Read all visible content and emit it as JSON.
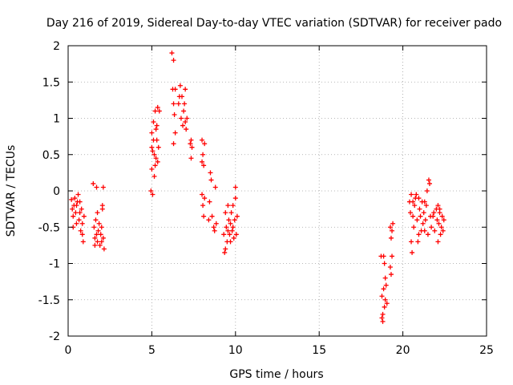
{
  "chart_data": {
    "type": "scatter",
    "title": "Day 216 of 2019, Sidereal Day-to-day VTEC variation (SDTVAR) for receiver pado",
    "xlabel": "GPS time / hours",
    "ylabel": "SDTVAR / TECUs",
    "xlim": [
      0,
      25
    ],
    "ylim": [
      -2,
      2
    ],
    "xticks": [
      0,
      5,
      10,
      15,
      20,
      25
    ],
    "yticks": [
      -2,
      -1.5,
      -1,
      -0.5,
      0,
      0.5,
      1,
      1.5,
      2
    ],
    "grid": true,
    "marker": "+",
    "color": "#ff0000",
    "series": [
      {
        "name": "SDTVAR",
        "points": [
          [
            0.2,
            -0.12
          ],
          [
            0.25,
            -0.25
          ],
          [
            0.3,
            -0.35
          ],
          [
            0.35,
            -0.2
          ],
          [
            0.4,
            -0.1
          ],
          [
            0.45,
            -0.3
          ],
          [
            0.5,
            -0.45
          ],
          [
            0.55,
            -0.15
          ],
          [
            0.6,
            -0.05
          ],
          [
            0.65,
            -0.4
          ],
          [
            0.7,
            -0.3
          ],
          [
            0.75,
            -0.55
          ],
          [
            0.8,
            -0.25
          ],
          [
            0.85,
            -0.6
          ],
          [
            0.9,
            -0.7
          ],
          [
            0.95,
            -0.35
          ],
          [
            0.3,
            -0.5
          ],
          [
            0.5,
            -0.2
          ],
          [
            0.7,
            -0.15
          ],
          [
            0.85,
            -0.45
          ],
          [
            1.5,
            0.1
          ],
          [
            1.55,
            -0.5
          ],
          [
            1.6,
            -0.65
          ],
          [
            1.65,
            -0.4
          ],
          [
            1.7,
            0.05
          ],
          [
            1.75,
            -0.7
          ],
          [
            1.8,
            -0.55
          ],
          [
            1.85,
            -0.45
          ],
          [
            1.9,
            -0.75
          ],
          [
            1.95,
            -0.6
          ],
          [
            2.0,
            -0.7
          ],
          [
            2.05,
            -0.2
          ],
          [
            2.1,
            0.05
          ],
          [
            2.15,
            -0.8
          ],
          [
            2.1,
            -0.65
          ],
          [
            1.6,
            -0.75
          ],
          [
            1.75,
            -0.3
          ],
          [
            2.0,
            -0.5
          ],
          [
            2.05,
            -0.25
          ],
          [
            1.7,
            -0.6
          ],
          [
            4.95,
            0.0
          ],
          [
            5.0,
            0.3
          ],
          [
            5.05,
            0.55
          ],
          [
            5.0,
            0.8
          ],
          [
            5.1,
            0.95
          ],
          [
            5.15,
            0.2
          ],
          [
            5.2,
            1.1
          ],
          [
            5.25,
            0.45
          ],
          [
            5.3,
            0.7
          ],
          [
            5.35,
            1.15
          ],
          [
            5.1,
            0.7
          ],
          [
            5.2,
            0.35
          ],
          [
            5.3,
            0.9
          ],
          [
            5.4,
            0.6
          ],
          [
            5.45,
            1.1
          ],
          [
            5.05,
            -0.05
          ],
          [
            5.15,
            0.5
          ],
          [
            5.25,
            0.85
          ],
          [
            5.35,
            0.4
          ],
          [
            5.0,
            0.6
          ],
          [
            6.2,
            1.9
          ],
          [
            6.3,
            1.8
          ],
          [
            6.25,
            1.4
          ],
          [
            6.35,
            1.05
          ],
          [
            6.4,
            0.8
          ],
          [
            6.3,
            0.65
          ],
          [
            6.6,
            1.2
          ],
          [
            6.7,
            1.45
          ],
          [
            6.75,
            1.0
          ],
          [
            6.8,
            1.3
          ],
          [
            6.85,
            0.9
          ],
          [
            6.9,
            1.1
          ],
          [
            7.0,
            1.4
          ],
          [
            7.05,
            0.85
          ],
          [
            7.1,
            1.0
          ],
          [
            6.65,
            1.3
          ],
          [
            6.95,
            1.2
          ],
          [
            7.0,
            0.95
          ],
          [
            6.4,
            1.4
          ],
          [
            6.3,
            1.2
          ],
          [
            7.3,
            0.65
          ],
          [
            7.35,
            0.45
          ],
          [
            7.4,
            0.6
          ],
          [
            7.35,
            0.7
          ],
          [
            8.0,
            0.7
          ],
          [
            8.05,
            0.5
          ],
          [
            8.1,
            0.35
          ],
          [
            8.0,
            0.4
          ],
          [
            8.15,
            0.65
          ],
          [
            8.0,
            -0.05
          ],
          [
            8.05,
            -0.2
          ],
          [
            8.1,
            -0.35
          ],
          [
            8.15,
            -0.1
          ],
          [
            8.4,
            -0.4
          ],
          [
            8.45,
            -0.15
          ],
          [
            8.5,
            0.25
          ],
          [
            8.55,
            0.15
          ],
          [
            8.6,
            -0.35
          ],
          [
            8.7,
            -0.5
          ],
          [
            8.8,
            0.05
          ],
          [
            8.75,
            -0.55
          ],
          [
            8.85,
            -0.45
          ],
          [
            9.3,
            -0.6
          ],
          [
            9.35,
            -0.85
          ],
          [
            9.4,
            -0.3
          ],
          [
            9.45,
            -0.5
          ],
          [
            9.5,
            -0.7
          ],
          [
            9.55,
            -0.2
          ],
          [
            9.6,
            -0.4
          ],
          [
            9.65,
            -0.6
          ],
          [
            9.7,
            -0.45
          ],
          [
            9.75,
            -0.3
          ],
          [
            9.8,
            -0.55
          ],
          [
            9.85,
            -0.2
          ],
          [
            9.9,
            -0.65
          ],
          [
            9.95,
            -0.4
          ],
          [
            10.0,
            0.05
          ],
          [
            10.05,
            -0.6
          ],
          [
            10.1,
            -0.35
          ],
          [
            10.0,
            -0.1
          ],
          [
            9.4,
            -0.8
          ],
          [
            9.55,
            -0.55
          ],
          [
            9.7,
            -0.7
          ],
          [
            9.85,
            -0.5
          ],
          [
            18.7,
            -0.9
          ],
          [
            18.75,
            -1.45
          ],
          [
            18.8,
            -1.8
          ],
          [
            18.85,
            -1.35
          ],
          [
            18.9,
            -1.6
          ],
          [
            18.95,
            -1.2
          ],
          [
            18.85,
            -0.9
          ],
          [
            18.9,
            -1.0
          ],
          [
            18.8,
            -1.7
          ],
          [
            18.95,
            -1.5
          ],
          [
            19.0,
            -1.3
          ],
          [
            19.05,
            -1.55
          ],
          [
            18.75,
            -1.75
          ],
          [
            19.25,
            -0.5
          ],
          [
            19.3,
            -0.65
          ],
          [
            19.35,
            -0.55
          ],
          [
            19.25,
            -1.05
          ],
          [
            19.3,
            -1.15
          ],
          [
            19.35,
            -0.9
          ],
          [
            19.4,
            -0.45
          ],
          [
            20.4,
            -0.15
          ],
          [
            20.45,
            -0.3
          ],
          [
            20.5,
            -0.7
          ],
          [
            20.55,
            -0.85
          ],
          [
            20.5,
            -0.05
          ],
          [
            20.6,
            -0.35
          ],
          [
            20.65,
            -0.5
          ],
          [
            20.7,
            -0.2
          ],
          [
            20.75,
            -0.1
          ],
          [
            20.8,
            -0.05
          ],
          [
            20.85,
            -0.4
          ],
          [
            20.9,
            -0.7
          ],
          [
            20.95,
            -0.6
          ],
          [
            21.0,
            -0.25
          ],
          [
            21.05,
            -0.35
          ],
          [
            21.1,
            -0.55
          ],
          [
            21.15,
            -0.15
          ],
          [
            21.2,
            -0.45
          ],
          [
            21.25,
            -0.3
          ],
          [
            21.3,
            -0.55
          ],
          [
            21.35,
            -0.4
          ],
          [
            21.4,
            -0.2
          ],
          [
            21.45,
            0.0
          ],
          [
            21.5,
            -0.6
          ],
          [
            21.55,
            0.15
          ],
          [
            21.6,
            0.1
          ],
          [
            21.65,
            -0.35
          ],
          [
            21.7,
            -0.5
          ],
          [
            21.8,
            -0.35
          ],
          [
            21.9,
            -0.55
          ],
          [
            22.0,
            -0.25
          ],
          [
            22.05,
            -0.4
          ],
          [
            22.1,
            -0.7
          ],
          [
            22.15,
            -0.45
          ],
          [
            22.2,
            -0.3
          ],
          [
            22.25,
            -0.6
          ],
          [
            22.3,
            -0.5
          ],
          [
            22.35,
            -0.35
          ],
          [
            22.4,
            -0.55
          ],
          [
            22.45,
            -0.4
          ],
          [
            22.2,
            -0.25
          ],
          [
            21.85,
            -0.3
          ],
          [
            20.6,
            -0.15
          ],
          [
            20.95,
            -0.1
          ],
          [
            21.3,
            -0.15
          ],
          [
            22.1,
            -0.2
          ]
        ]
      }
    ]
  }
}
